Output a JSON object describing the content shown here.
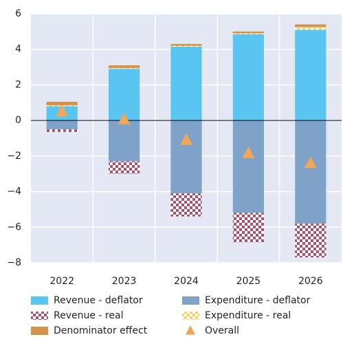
{
  "chart_data": {
    "type": "bar",
    "stacked": true,
    "categories": [
      "2022",
      "2023",
      "2024",
      "2025",
      "2026"
    ],
    "series": [
      {
        "name": "Revenue - deflator",
        "color": "#5bc5f2",
        "values": [
          0.8,
          2.9,
          4.15,
          4.85,
          5.1
        ]
      },
      {
        "name": "Expenditure - deflator",
        "color": "#7fa3c8",
        "values": [
          -0.5,
          -2.3,
          -4.1,
          -5.2,
          -5.8
        ]
      },
      {
        "name": "Revenue - real",
        "color": "#a6546e",
        "pattern": "checker",
        "values": [
          -0.15,
          -0.7,
          -1.3,
          -1.65,
          -1.9
        ]
      },
      {
        "name": "Expenditure - real",
        "color": "#f5d35e",
        "pattern": "checker",
        "values": [
          0.05,
          0.05,
          0.05,
          0.05,
          0.15
        ]
      },
      {
        "name": "Denominator effect",
        "color": "#d4924a",
        "values": [
          0.2,
          0.15,
          0.1,
          0.1,
          0.15
        ]
      },
      {
        "name": "Overall",
        "color": "#f2a65a",
        "marker": "triangle",
        "values": [
          0.5,
          0.05,
          -1.1,
          -1.85,
          -2.4
        ]
      }
    ],
    "ylim": [
      -8,
      6
    ],
    "yticks": [
      {
        "value": -8,
        "label": "−8"
      },
      {
        "value": -6,
        "label": "−6"
      },
      {
        "value": -4,
        "label": "−4"
      },
      {
        "value": -2,
        "label": "−2"
      },
      0,
      2,
      4,
      6
    ],
    "grid": true
  }
}
